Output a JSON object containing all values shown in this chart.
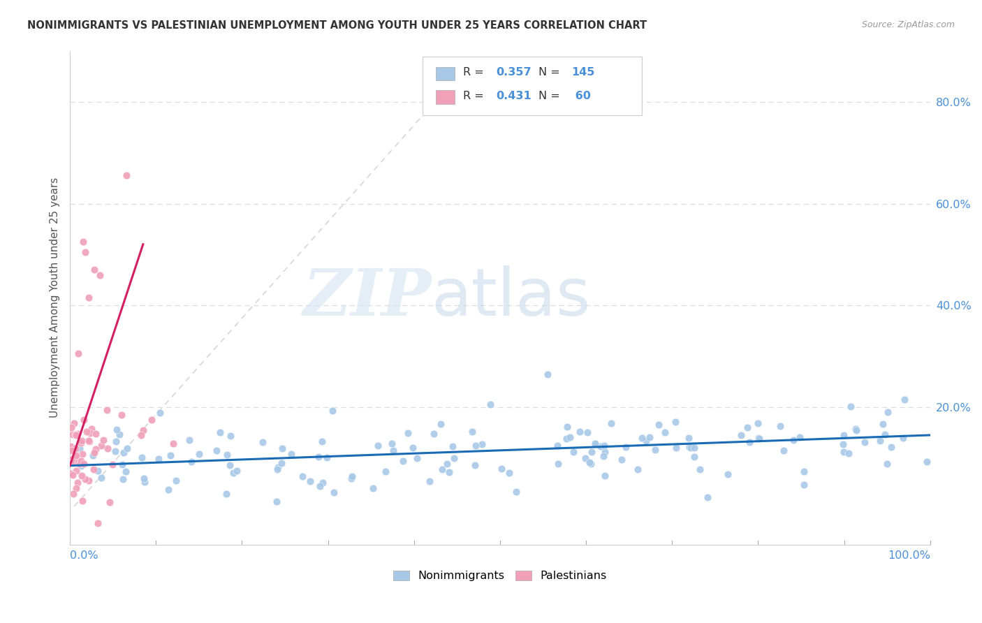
{
  "title": "NONIMMIGRANTS VS PALESTINIAN UNEMPLOYMENT AMONG YOUTH UNDER 25 YEARS CORRELATION CHART",
  "source": "Source: ZipAtlas.com",
  "ylabel": "Unemployment Among Youth under 25 years",
  "watermark_zip": "ZIP",
  "watermark_atlas": "atlas",
  "legend_r_blue": "0.357",
  "legend_n_blue": "145",
  "legend_r_pink": "0.431",
  "legend_n_pink": " 60",
  "blue_scatter_color": "#a8c8e8",
  "pink_scatter_color": "#f0a0b8",
  "blue_line_color": "#1a6bb5",
  "pink_line_color": "#d42060",
  "dashed_line_color": "#cccccc",
  "title_color": "#333333",
  "source_color": "#999999",
  "axis_color": "#4a90d9",
  "background": "#ffffff",
  "grid_color": "#dddddd",
  "R_blue": 0.357,
  "N_blue": 145,
  "R_pink": 0.431,
  "N_pink": 60
}
